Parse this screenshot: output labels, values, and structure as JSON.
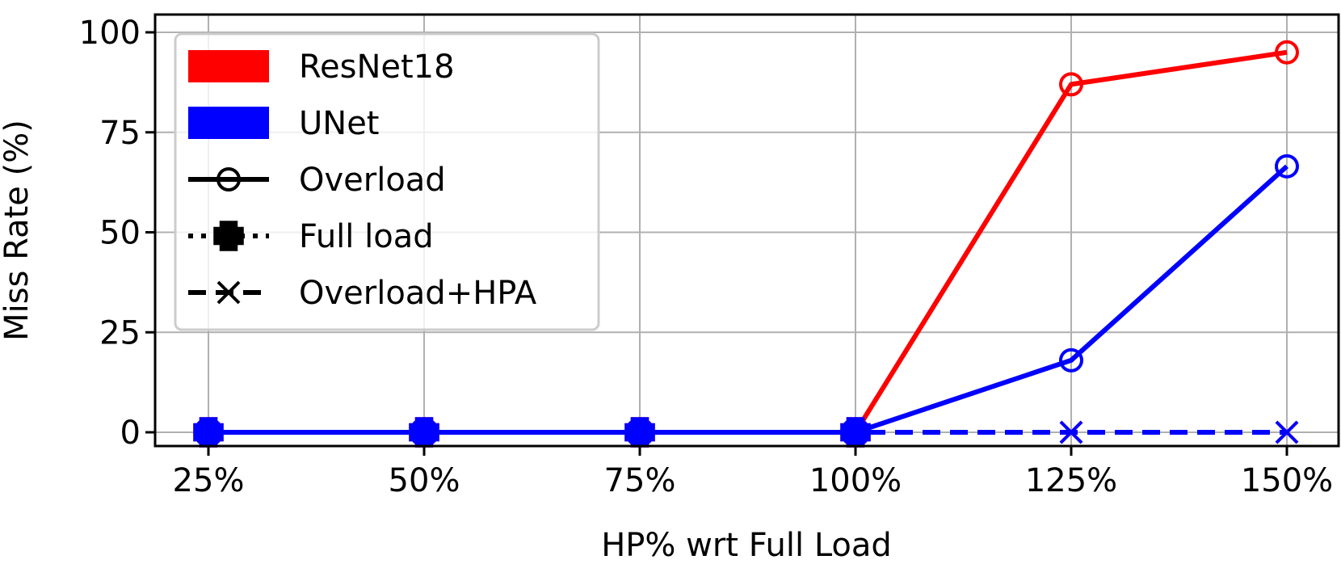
{
  "chart_data": {
    "type": "line",
    "title": "",
    "xlabel": "HP% wrt Full Load",
    "ylabel": "Miss Rate (%)",
    "categories": [
      "25%",
      "50%",
      "75%",
      "100%",
      "125%",
      "150%"
    ],
    "ylim": [
      0,
      100
    ],
    "yticks": [
      "0",
      "25",
      "50",
      "75",
      "100"
    ],
    "ytick_values": [
      0,
      25,
      50,
      75,
      100
    ],
    "grid": true,
    "legend_position": "top-left",
    "legend": {
      "models": [
        {
          "label": "ResNet18",
          "color": "#ff0000"
        },
        {
          "label": "UNet",
          "color": "#0000ff"
        }
      ],
      "modes": [
        {
          "label": "Overload",
          "style": "solid",
          "marker": "circle"
        },
        {
          "label": "Full load",
          "style": "dotted",
          "marker": "plus"
        },
        {
          "label": "Overload+HPA",
          "style": "dashed",
          "marker": "x"
        }
      ]
    },
    "series": [
      {
        "model": "ResNet18",
        "mode": "Full load",
        "color": "#ff0000",
        "style": "dotted",
        "marker": "plus",
        "values": [
          0,
          0,
          0,
          0,
          null,
          null
        ]
      },
      {
        "model": "ResNet18",
        "mode": "Overload+HPA",
        "color": "#ff0000",
        "style": "dashed",
        "marker": "x",
        "values": [
          0,
          0,
          0,
          0,
          0,
          0
        ]
      },
      {
        "model": "ResNet18",
        "mode": "Overload",
        "color": "#ff0000",
        "style": "solid",
        "marker": "circle",
        "values": [
          0,
          0,
          0,
          0,
          87,
          95
        ]
      },
      {
        "model": "UNet",
        "mode": "Full load",
        "color": "#0000ff",
        "style": "dotted",
        "marker": "plus",
        "values": [
          0,
          0,
          0,
          0,
          null,
          null
        ]
      },
      {
        "model": "UNet",
        "mode": "Overload+HPA",
        "color": "#0000ff",
        "style": "dashed",
        "marker": "x",
        "values": [
          0,
          0,
          0,
          0,
          0,
          0
        ]
      },
      {
        "model": "UNet",
        "mode": "Overload",
        "color": "#0000ff",
        "style": "solid",
        "marker": "circle",
        "values": [
          0,
          0,
          0,
          0,
          18,
          66.5
        ]
      }
    ]
  }
}
